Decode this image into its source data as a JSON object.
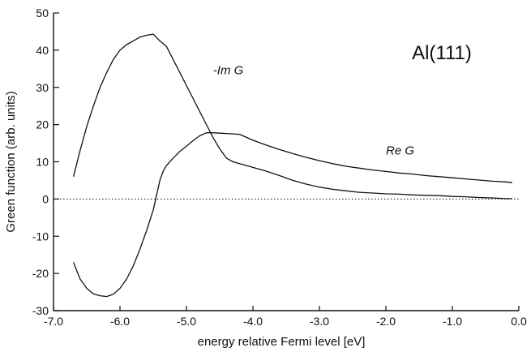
{
  "chart_data": {
    "type": "line",
    "title": "",
    "panel_label": "Al(111)",
    "xlabel": "energy relative Fermi level [eV]",
    "ylabel": "Green function (arb. units)",
    "xlim": [
      -7.0,
      0.0
    ],
    "ylim": [
      -30,
      50
    ],
    "x_ticks": [
      -7.0,
      -6.0,
      -5.0,
      -4.0,
      -3.0,
      -2.0,
      -1.0,
      0.0
    ],
    "x_tick_labels": [
      "-7.0",
      "-6.0",
      "-5.0",
      "-4.0",
      "-3.0",
      "-2.0",
      "-1.0",
      "0.0"
    ],
    "y_ticks": [
      -30,
      -20,
      -10,
      0,
      10,
      20,
      30,
      40,
      50
    ],
    "y_tick_labels": [
      "-30",
      "-20",
      "-10",
      "0",
      "10",
      "20",
      "30",
      "40",
      "50"
    ],
    "grid": false,
    "zero_line": "dotted",
    "series": [
      {
        "name": "-Im G",
        "x": [
          -6.7,
          -6.6,
          -6.5,
          -6.4,
          -6.3,
          -6.2,
          -6.1,
          -6.0,
          -5.9,
          -5.8,
          -5.7,
          -5.6,
          -5.5,
          -5.4,
          -5.3,
          -5.2,
          -5.1,
          -5.0,
          -4.9,
          -4.8,
          -4.7,
          -4.6,
          -4.5,
          -4.4,
          -4.3,
          -4.2,
          -4.0,
          -3.8,
          -3.6,
          -3.4,
          -3.2,
          -3.0,
          -2.8,
          -2.6,
          -2.4,
          -2.2,
          -2.0,
          -1.8,
          -1.6,
          -1.4,
          -1.2,
          -1.0,
          -0.8,
          -0.6,
          -0.4,
          -0.2,
          -0.1
        ],
        "y": [
          6,
          13,
          19.5,
          25,
          30,
          34,
          37.5,
          40,
          41.5,
          42.5,
          43.5,
          44,
          44.3,
          42.5,
          41,
          37.5,
          34,
          30.5,
          27,
          23.5,
          20,
          16.5,
          13.5,
          11,
          10,
          9.5,
          8.5,
          7.5,
          6.3,
          5,
          4,
          3.2,
          2.6,
          2.2,
          1.8,
          1.6,
          1.4,
          1.3,
          1.1,
          1.0,
          0.9,
          0.7,
          0.6,
          0.4,
          0.3,
          0.1,
          0.1
        ]
      },
      {
        "name": "Re G",
        "x": [
          -6.7,
          -6.6,
          -6.5,
          -6.4,
          -6.3,
          -6.2,
          -6.1,
          -6.0,
          -5.9,
          -5.8,
          -5.7,
          -5.6,
          -5.5,
          -5.45,
          -5.4,
          -5.35,
          -5.3,
          -5.2,
          -5.1,
          -5.0,
          -4.9,
          -4.8,
          -4.7,
          -4.6,
          -4.5,
          -4.4,
          -4.3,
          -4.2,
          -4.0,
          -3.8,
          -3.6,
          -3.4,
          -3.2,
          -3.0,
          -2.8,
          -2.6,
          -2.4,
          -2.2,
          -2.0,
          -1.8,
          -1.6,
          -1.4,
          -1.2,
          -1.0,
          -0.8,
          -0.6,
          -0.4,
          -0.2,
          -0.1
        ],
        "y": [
          -17,
          -21.5,
          -24,
          -25.5,
          -26,
          -26.2,
          -25.6,
          -24,
          -21.5,
          -18,
          -13.5,
          -8.5,
          -3,
          1,
          5,
          7.5,
          9,
          11,
          12.8,
          14.2,
          15.7,
          17,
          17.8,
          17.8,
          17.7,
          17.6,
          17.5,
          17.4,
          15.8,
          14.5,
          13.3,
          12.2,
          11.2,
          10.3,
          9.5,
          8.8,
          8.3,
          7.8,
          7.4,
          7.0,
          6.7,
          6.3,
          6.0,
          5.7,
          5.4,
          5.1,
          4.8,
          4.6,
          4.4
        ]
      }
    ],
    "annotations": [
      {
        "text": "-Im G",
        "x": -4.6,
        "y": 33.5
      },
      {
        "text": "Re G",
        "x": -2.0,
        "y": 12
      }
    ]
  }
}
